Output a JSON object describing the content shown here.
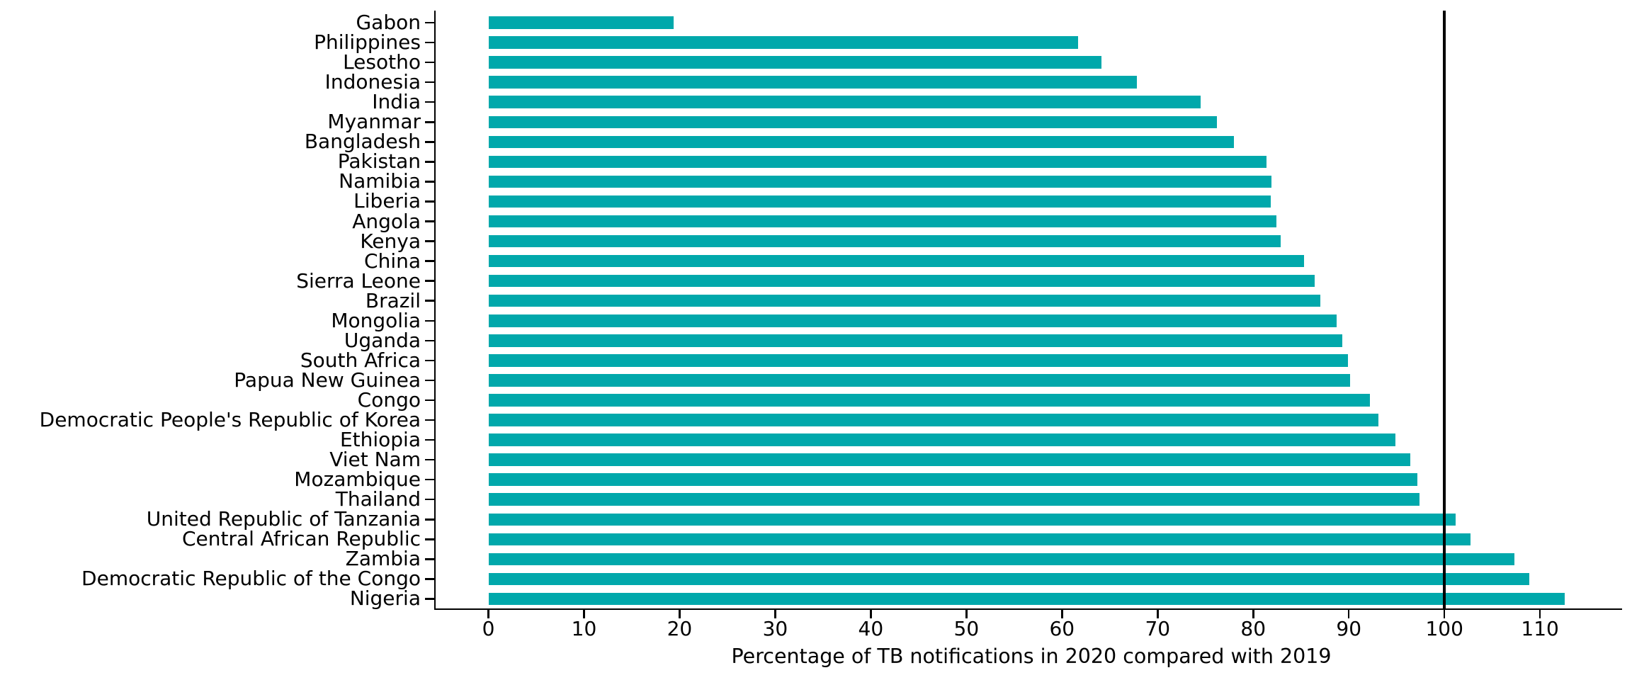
{
  "chart_data": {
    "type": "bar",
    "orientation": "horizontal",
    "xlabel": "Percentage of TB notifications in 2020 compared with 2019",
    "categories": [
      "Gabon",
      "Philippines",
      "Lesotho",
      "Indonesia",
      "India",
      "Myanmar",
      "Bangladesh",
      "Pakistan",
      "Namibia",
      "Liberia",
      "Angola",
      "Kenya",
      "China",
      "Sierra Leone",
      "Brazil",
      "Mongolia",
      "Uganda",
      "South Africa",
      "Papua New Guinea",
      "Congo",
      "Democratic People's Republic of Korea",
      "Ethiopia",
      "Viet Nam",
      "Mozambique",
      "Thailand",
      "United Republic of Tanzania",
      "Central African Republic",
      "Zambia",
      "Democratic Republic of the Congo",
      "Nigeria"
    ],
    "values": [
      19.4,
      61.7,
      64.1,
      67.8,
      74.5,
      76.2,
      78.0,
      81.4,
      81.9,
      81.8,
      82.4,
      82.9,
      85.3,
      86.4,
      87.0,
      88.7,
      89.3,
      89.9,
      90.1,
      92.2,
      93.1,
      94.9,
      96.4,
      97.2,
      97.4,
      101.2,
      102.7,
      107.3,
      108.9,
      112.6
    ],
    "xticks": [
      0,
      10,
      20,
      30,
      40,
      50,
      60,
      70,
      80,
      90,
      100,
      110
    ],
    "xlim": [
      0,
      118
    ],
    "reference_line_x": 100,
    "bar_color": "#00A8AB",
    "axis_color": "#000000",
    "grid": false,
    "legend": false
  }
}
